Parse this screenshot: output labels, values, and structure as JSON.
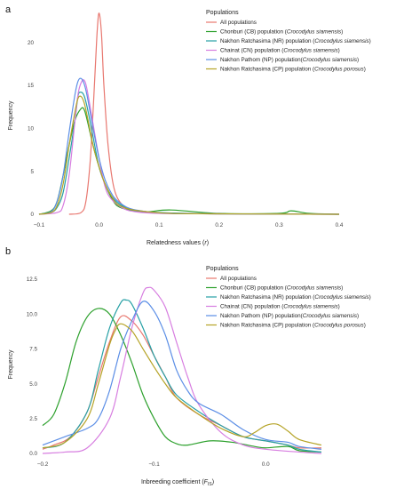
{
  "chart_data": [
    {
      "panel": "a",
      "type": "line",
      "xlabel": "Relatedness values (r)",
      "xlabel_main": "Relatedness values (",
      "xlabel_var": "r",
      "xlabel_end": ")",
      "ylabel": "Frequency",
      "xlim": [
        -0.1,
        0.4
      ],
      "ylim": [
        0,
        24
      ],
      "xticks": [
        -0.1,
        0.0,
        0.1,
        0.2,
        0.3,
        0.4
      ],
      "xtick_labels": [
        "−0.1",
        "0.0",
        "0.1",
        "0.2",
        "0.3",
        "0.4"
      ],
      "yticks": [
        0,
        5,
        10,
        15,
        20
      ],
      "ytick_labels": [
        "0",
        "5",
        "10",
        "15",
        "20"
      ],
      "legend": {
        "title": "Populations",
        "placement": "top-right",
        "entries": [
          {
            "main": "All populations",
            "italic": ""
          },
          {
            "main": "Chonburi (CB) population (",
            "italic": "Crocodylus siamensis",
            "end": ")"
          },
          {
            "main": "Nakhon Ratchasima (NR) population (",
            "italic": "Crocodylus siamensis",
            "end": ")"
          },
          {
            "main": "Chainat (CN) population (",
            "italic": "Crocodylus siamensis",
            "end": ")"
          },
          {
            "main": "Nakhon Pathom (NP) population(",
            "italic": "Crocodylus siamensis",
            "end": ")"
          },
          {
            "main": "Nakhon Ratchasima (CP) population (",
            "italic": "Crocodylus porosus",
            "end": ")"
          }
        ]
      },
      "series": [
        {
          "color": "#e8776f",
          "x": [
            -0.05,
            -0.03,
            -0.022,
            -0.015,
            -0.01,
            -0.006,
            -0.003,
            0.0,
            0.004,
            0.008,
            0.015,
            0.025,
            0.04,
            0.06,
            0.1,
            0.2,
            0.4
          ],
          "y": [
            0,
            0.2,
            1.5,
            6,
            12,
            17.5,
            21.5,
            23.4,
            21,
            15,
            8,
            3,
            1,
            0.4,
            0.15,
            0.05,
            0
          ]
        },
        {
          "color": "#2ca02c",
          "x": [
            -0.1,
            -0.08,
            -0.07,
            -0.06,
            -0.05,
            -0.04,
            -0.03,
            -0.025,
            -0.02,
            -0.01,
            0.0,
            0.01,
            0.02,
            0.03,
            0.05,
            0.08,
            0.12,
            0.2,
            0.3,
            0.32,
            0.35,
            0.4
          ],
          "y": [
            0,
            0.4,
            1.5,
            4.5,
            8,
            11,
            12.3,
            12.2,
            11,
            8,
            5.5,
            3.5,
            2,
            1,
            0.5,
            0.3,
            0.5,
            0.1,
            0.1,
            0.4,
            0.1,
            0
          ]
        },
        {
          "color": "#26a0a5",
          "x": [
            -0.1,
            -0.08,
            -0.07,
            -0.06,
            -0.05,
            -0.04,
            -0.035,
            -0.03,
            -0.025,
            -0.02,
            -0.01,
            0.0,
            0.01,
            0.02,
            0.03,
            0.05,
            0.08,
            0.12,
            0.2,
            0.4
          ],
          "y": [
            0,
            0.2,
            0.8,
            2.5,
            6.5,
            11,
            13.8,
            14.2,
            13.8,
            12.5,
            9,
            5.5,
            3.5,
            2.2,
            1.4,
            0.6,
            0.3,
            0.15,
            0.05,
            0
          ]
        },
        {
          "color": "#d77ee0",
          "x": [
            -0.1,
            -0.07,
            -0.06,
            -0.05,
            -0.04,
            -0.035,
            -0.03,
            -0.025,
            -0.02,
            -0.01,
            0.0,
            0.01,
            0.02,
            0.04,
            0.06,
            0.1,
            0.2,
            0.4
          ],
          "y": [
            0,
            0.2,
            1,
            4.5,
            11,
            14,
            15.3,
            15.6,
            14.5,
            10.5,
            6.5,
            3.2,
            1.8,
            0.7,
            0.3,
            0.1,
            0.05,
            0
          ]
        },
        {
          "color": "#5b8ee6",
          "x": [
            -0.1,
            -0.08,
            -0.07,
            -0.06,
            -0.05,
            -0.04,
            -0.035,
            -0.03,
            -0.025,
            -0.02,
            -0.01,
            0.0,
            0.01,
            0.02,
            0.03,
            0.05,
            0.08,
            0.12,
            0.2,
            0.4
          ],
          "y": [
            0,
            0.3,
            1.5,
            4.5,
            9.5,
            14,
            15.5,
            15.8,
            15.2,
            13.8,
            10,
            6.5,
            4,
            2.5,
            1.6,
            0.7,
            0.3,
            0.1,
            0.05,
            0
          ]
        },
        {
          "color": "#b5a326",
          "x": [
            -0.1,
            -0.08,
            -0.07,
            -0.06,
            -0.05,
            -0.04,
            -0.035,
            -0.03,
            -0.025,
            -0.02,
            -0.01,
            0.0,
            0.01,
            0.02,
            0.03,
            0.05,
            0.08,
            0.12,
            0.2,
            0.4
          ],
          "y": [
            0,
            0.2,
            1,
            3.5,
            8,
            12,
            13.5,
            13.7,
            13,
            11.5,
            8,
            5.5,
            3.5,
            2.2,
            1.2,
            0.6,
            0.3,
            0.1,
            0.05,
            0
          ]
        }
      ]
    },
    {
      "panel": "b",
      "type": "line",
      "xlabel": "Inbreeding coefficient (FIS)",
      "xlabel_main": "Inbreeding coefficient (",
      "xlabel_var": "F",
      "xlabel_sub": "IS",
      "xlabel_end": ")",
      "ylabel": "Frequency",
      "xlim": [
        -0.2,
        0.05
      ],
      "ylim": [
        0,
        12.5
      ],
      "xticks": [
        -0.2,
        -0.1,
        0.0
      ],
      "xtick_labels": [
        "−0.2",
        "−0.1",
        "0.0"
      ],
      "yticks": [
        0.0,
        2.5,
        5.0,
        7.5,
        10.0,
        12.5
      ],
      "ytick_labels": [
        "0.0",
        "2.5",
        "5.0",
        "7.5",
        "10.0",
        "12.5"
      ],
      "legend": {
        "title": "Populations",
        "placement": "top-right",
        "entries": [
          {
            "main": "All populations",
            "italic": ""
          },
          {
            "main": "Chonburi (CB) population (",
            "italic": "Crocodylus siamensis",
            "end": ")"
          },
          {
            "main": "Nakhon Ratchasima (NR) population (",
            "italic": "Crocodylus siamensis",
            "end": ")"
          },
          {
            "main": "Chainat (CN) population (",
            "italic": "Crocodylus siamensis",
            "end": ")"
          },
          {
            "main": "Nakhon Pathom (NP) population(",
            "italic": "Crocodylus siamensis",
            "end": ")"
          },
          {
            "main": "Nakhon Ratchasima (CP) population (",
            "italic": "Crocodylus porosus",
            "end": ")"
          }
        ]
      },
      "series": [
        {
          "color": "#e8776f",
          "x": [
            -0.2,
            -0.19,
            -0.175,
            -0.16,
            -0.15,
            -0.14,
            -0.13,
            -0.12,
            -0.11,
            -0.1,
            -0.09,
            -0.08,
            -0.06,
            -0.04,
            -0.02,
            0.0,
            0.02,
            0.03,
            0.05
          ],
          "y": [
            0.3,
            0.6,
            1.2,
            3,
            5.5,
            8,
            9.8,
            9.5,
            8.5,
            7,
            5.5,
            4,
            2.8,
            2,
            1.2,
            0.9,
            0.6,
            0.4,
            0.4
          ]
        },
        {
          "color": "#2ca02c",
          "x": [
            -0.2,
            -0.19,
            -0.18,
            -0.17,
            -0.16,
            -0.15,
            -0.14,
            -0.13,
            -0.12,
            -0.11,
            -0.1,
            -0.09,
            -0.08,
            -0.07,
            -0.05,
            -0.03,
            -0.01,
            0.0,
            0.02,
            0.03,
            0.05
          ],
          "y": [
            2,
            2.8,
            5,
            8,
            9.8,
            10.4,
            10,
            8.5,
            6.5,
            4.2,
            2.5,
            1.2,
            0.7,
            0.6,
            0.9,
            0.8,
            0.5,
            0.4,
            0.5,
            0.2,
            0.1
          ]
        },
        {
          "color": "#26a0a5",
          "x": [
            -0.2,
            -0.18,
            -0.16,
            -0.15,
            -0.14,
            -0.13,
            -0.125,
            -0.12,
            -0.11,
            -0.1,
            -0.09,
            -0.08,
            -0.06,
            -0.04,
            -0.02,
            0.0,
            0.02,
            0.03,
            0.05
          ],
          "y": [
            0.4,
            0.8,
            3,
            6,
            9,
            10.8,
            11,
            10.7,
            9,
            7,
            5.5,
            4.2,
            3,
            2,
            1.2,
            0.9,
            0.6,
            0.3,
            0.1
          ]
        },
        {
          "color": "#d77ee0",
          "x": [
            -0.2,
            -0.18,
            -0.16,
            -0.14,
            -0.13,
            -0.12,
            -0.11,
            -0.105,
            -0.1,
            -0.09,
            -0.08,
            -0.07,
            -0.06,
            -0.04,
            -0.02,
            0.0,
            0.03,
            0.05
          ],
          "y": [
            0,
            0.1,
            0.4,
            2.5,
            5.5,
            9,
            11.5,
            11.9,
            11.7,
            10.5,
            8,
            5.5,
            3.5,
            1.5,
            0.6,
            0.3,
            0.1,
            0
          ]
        },
        {
          "color": "#5b8ee6",
          "x": [
            -0.2,
            -0.18,
            -0.16,
            -0.15,
            -0.14,
            -0.13,
            -0.12,
            -0.11,
            -0.1,
            -0.09,
            -0.08,
            -0.07,
            -0.06,
            -0.04,
            -0.02,
            0.0,
            0.02,
            0.03,
            0.05
          ],
          "y": [
            0.6,
            1.2,
            1.8,
            2.5,
            4.5,
            7.5,
            9.5,
            10.9,
            10.2,
            8.5,
            6,
            4.5,
            3.6,
            2.8,
            1.7,
            1,
            0.8,
            0.5,
            0.3
          ]
        },
        {
          "color": "#b5a326",
          "x": [
            -0.2,
            -0.18,
            -0.16,
            -0.15,
            -0.14,
            -0.135,
            -0.13,
            -0.12,
            -0.11,
            -0.1,
            -0.09,
            -0.08,
            -0.06,
            -0.04,
            -0.02,
            -0.01,
            0.0,
            0.01,
            0.02,
            0.03,
            0.05
          ],
          "y": [
            0.4,
            0.8,
            2.5,
            5,
            7.8,
            8.8,
            9.3,
            8.8,
            7.5,
            6.2,
            5,
            4,
            2.8,
            1.8,
            1.2,
            1.5,
            2,
            2.1,
            1.6,
            1,
            0.6
          ]
        }
      ]
    }
  ]
}
